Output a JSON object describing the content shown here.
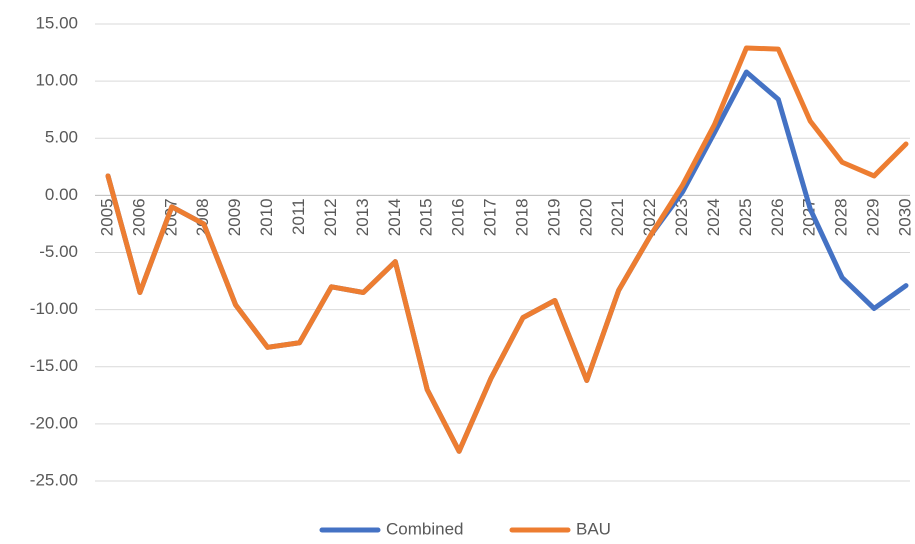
{
  "chart_data": {
    "type": "line",
    "categories": [
      "2005",
      "2006",
      "2007",
      "2008",
      "2009",
      "2010",
      "2011",
      "2012",
      "2013",
      "2014",
      "2015",
      "2016",
      "2017",
      "2018",
      "2019",
      "2020",
      "2021",
      "2022",
      "2023",
      "2024",
      "2025",
      "2026",
      "2027",
      "2028",
      "2029",
      "2030"
    ],
    "series": [
      {
        "name": "Combined",
        "color": "#4472c4",
        "values": [
          1.7,
          -8.5,
          -1.0,
          -2.5,
          -9.6,
          -13.3,
          -12.9,
          -8.0,
          -8.5,
          -5.8,
          -17.0,
          -22.4,
          -16.0,
          -10.7,
          -9.2,
          -16.2,
          -8.3,
          -3.5,
          0.3,
          5.5,
          10.8,
          8.4,
          -1.2,
          -7.2,
          -9.9,
          -7.9
        ]
      },
      {
        "name": "BAU",
        "color": "#ed7d31",
        "values": [
          1.7,
          -8.5,
          -1.0,
          -2.5,
          -9.6,
          -13.3,
          -12.9,
          -8.0,
          -8.5,
          -5.8,
          -17.0,
          -22.4,
          -16.0,
          -10.7,
          -9.2,
          -16.2,
          -8.3,
          -3.5,
          0.9,
          6.2,
          12.9,
          12.8,
          6.5,
          2.9,
          1.7,
          4.5
        ]
      }
    ],
    "ylim": [
      -25,
      15
    ],
    "yticks": [
      {
        "value": -25,
        "label": "-25.00"
      },
      {
        "value": -20,
        "label": "-20.00"
      },
      {
        "value": -15,
        "label": "-15.00"
      },
      {
        "value": -10,
        "label": "-10.00"
      },
      {
        "value": -5,
        "label": "-5.00"
      },
      {
        "value": 0,
        "label": "0.00"
      },
      {
        "value": 5,
        "label": "5.00"
      },
      {
        "value": 10,
        "label": "10.00"
      },
      {
        "value": 15,
        "label": "15.00"
      }
    ],
    "grid": true,
    "legend": "bottom"
  }
}
